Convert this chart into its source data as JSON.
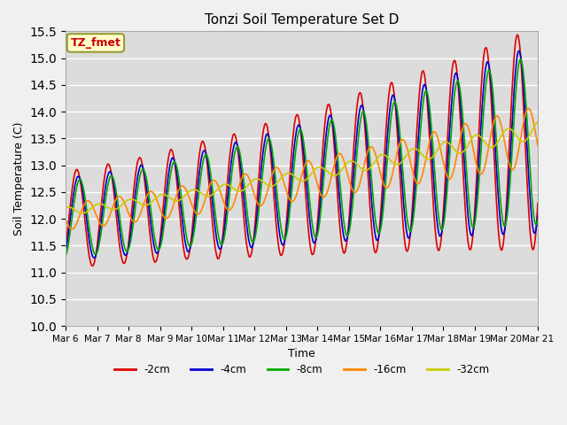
{
  "title": "Tonzi Soil Temperature Set D",
  "xlabel": "Time",
  "ylabel": "Soil Temperature (C)",
  "ylim": [
    10.0,
    15.5
  ],
  "yticks": [
    10.0,
    10.5,
    11.0,
    11.5,
    12.0,
    12.5,
    13.0,
    13.5,
    14.0,
    14.5,
    15.0,
    15.5
  ],
  "xtick_labels": [
    "Mar 6",
    "Mar 7",
    "Mar 8",
    "Mar 9",
    "Mar 10",
    "Mar 11",
    "Mar 12",
    "Mar 13",
    "Mar 14",
    "Mar 15",
    "Mar 16",
    "Mar 17",
    "Mar 18",
    "Mar 19",
    "Mar 20",
    "Mar 21"
  ],
  "annotation_label": "TZ_fmet",
  "annotation_color": "#cc0000",
  "annotation_bg": "#ffffcc",
  "annotation_border": "#999933",
  "legend_entries": [
    "-2cm",
    "-4cm",
    "-8cm",
    "-16cm",
    "-32cm"
  ],
  "line_colors": [
    "#dd0000",
    "#0000cc",
    "#00aa00",
    "#ff8800",
    "#cccc00"
  ],
  "line_widths": [
    1.2,
    1.2,
    1.2,
    1.2,
    1.2
  ],
  "fig_bg_color": "#f0f0f0",
  "plot_bg": "#dcdcdc",
  "start_day": 6,
  "end_day": 21,
  "n_points": 1440
}
